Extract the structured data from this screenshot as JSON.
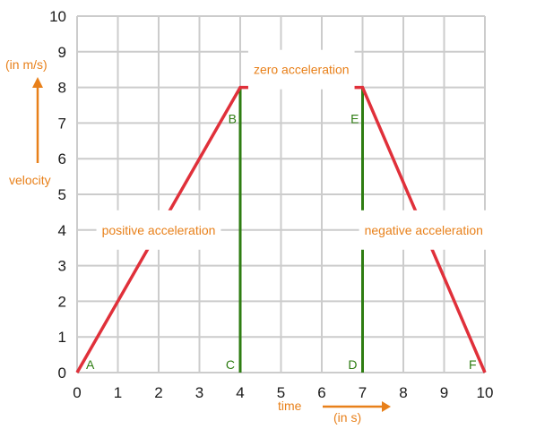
{
  "chart_data": {
    "type": "line",
    "x": [
      0,
      4,
      7,
      10
    ],
    "series": [
      {
        "values": [
          0,
          8,
          8,
          0
        ],
        "color": "#e0303a"
      }
    ],
    "xlim": [
      0,
      10
    ],
    "ylim": [
      0,
      10
    ],
    "x_ticks": [
      "0",
      "1",
      "2",
      "3",
      "4",
      "5",
      "6",
      "7",
      "8",
      "9",
      "10"
    ],
    "y_ticks": [
      "0",
      "1",
      "2",
      "3",
      "4",
      "5",
      "6",
      "7",
      "8",
      "9",
      "10"
    ],
    "grid": true,
    "xlabel": "time",
    "xunit": "(in s)",
    "ylabel": "velocity",
    "yunit": "(in m/s)",
    "verticals": [
      {
        "x": 4,
        "y0": 0,
        "y1": 8,
        "color": "#2e7d12"
      },
      {
        "x": 7,
        "y0": 0,
        "y1": 8,
        "color": "#2e7d12"
      }
    ],
    "points": [
      {
        "label": "A",
        "x": 0,
        "y": 0
      },
      {
        "label": "B",
        "x": 4,
        "y": 8
      },
      {
        "label": "C",
        "x": 4,
        "y": 0
      },
      {
        "label": "D",
        "x": 7,
        "y": 0
      },
      {
        "label": "E",
        "x": 7,
        "y": 8
      },
      {
        "label": "F",
        "x": 10,
        "y": 0
      }
    ],
    "annotations": [
      {
        "text": "positive acceleration",
        "x": 2,
        "y": 4
      },
      {
        "text": "zero acceleration",
        "x": 5.5,
        "y": 8.5
      },
      {
        "text": "negative acceleration",
        "x": 8.5,
        "y": 4
      }
    ],
    "accent_color": "#e8801a"
  }
}
